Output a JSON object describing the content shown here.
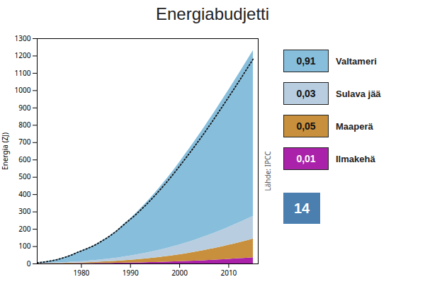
{
  "chart_data": {
    "type": "area",
    "title": "Energiabudjetti",
    "ylabel": "Energia (ZJ)",
    "annotations": [
      "Lähde: IPCC",
      "14"
    ],
    "x": [
      1971,
      1972,
      1973,
      1974,
      1975,
      1976,
      1977,
      1978,
      1979,
      1980,
      1981,
      1982,
      1983,
      1984,
      1985,
      1986,
      1987,
      1988,
      1989,
      1990,
      1991,
      1992,
      1993,
      1994,
      1995,
      1996,
      1997,
      1998,
      1999,
      2000,
      2001,
      2002,
      2003,
      2004,
      2005,
      2006,
      2007,
      2008,
      2009,
      2010,
      2011,
      2012,
      2013,
      2014,
      2015
    ],
    "series": [
      {
        "name": "Ilmakehä",
        "color": "#aa22aa",
        "share": {
          "value": 0.01,
          "label": "0,01"
        },
        "values": [
          0.5,
          0.6,
          0.7,
          0.8,
          0.9,
          1.0,
          1.2,
          1.4,
          1.6,
          1.9,
          2.1,
          2.3,
          2.6,
          2.9,
          3.2,
          3.5,
          3.9,
          4.3,
          4.8,
          5.3,
          5.8,
          6.4,
          7.0,
          7.7,
          8.4,
          9.2,
          10.0,
          10.9,
          11.8,
          12.8,
          13.9,
          15.0,
          16.2,
          17.5,
          18.9,
          20.3,
          21.8,
          23.4,
          25.0,
          26.7,
          28.4,
          30.2,
          32.0,
          33.9,
          35.8
        ]
      },
      {
        "name": "Maaperä",
        "color": "#c8903c",
        "share": {
          "value": 0.05,
          "label": "0,05"
        },
        "values": [
          1.0,
          1.2,
          1.5,
          1.8,
          2.1,
          2.5,
          2.9,
          3.4,
          4.0,
          4.7,
          5.4,
          6.2,
          7.1,
          8.1,
          9.2,
          10.4,
          11.7,
          13.1,
          14.7,
          16.3,
          18.1,
          20.0,
          22.0,
          24.2,
          26.5,
          29.0,
          31.6,
          34.4,
          37.3,
          40.4,
          43.7,
          47.2,
          50.9,
          54.7,
          58.8,
          63.0,
          67.4,
          71.9,
          76.6,
          81.5,
          86.5,
          91.7,
          97.0,
          102.5,
          108.1
        ]
      },
      {
        "name": "Sulava jää",
        "color": "#b8cee0",
        "share": {
          "value": 0.03,
          "label": "0,03"
        },
        "values": [
          1.5,
          1.8,
          2.1,
          2.5,
          3.0,
          3.6,
          4.2,
          5.0,
          5.9,
          7.0,
          8.1,
          9.4,
          10.8,
          12.3,
          13.9,
          15.7,
          17.6,
          19.7,
          21.9,
          24.3,
          26.8,
          29.5,
          32.3,
          35.3,
          38.4,
          41.7,
          45.2,
          48.8,
          52.6,
          56.5,
          60.6,
          64.8,
          69.2,
          73.7,
          78.3,
          83.1,
          88.0,
          93.0,
          98.1,
          103.3,
          108.6,
          114.0,
          119.5,
          125.1,
          130.7
        ]
      },
      {
        "name": "Valtameri",
        "color": "#87bedc",
        "share": {
          "value": 0.91,
          "label": "0,91"
        },
        "values": [
          5,
          7,
          10,
          14,
          19,
          26,
          33,
          42,
          53,
          62,
          71,
          80,
          92,
          106,
          120,
          136,
          154,
          174,
          196,
          216,
          238,
          261,
          285,
          310,
          336,
          363,
          390,
          418,
          447,
          477,
          508,
          538,
          569,
          600,
          631,
          663,
          695,
          727,
          760,
          792,
          825,
          858,
          891,
          924,
          957
        ]
      },
      {
        "type": "line",
        "line_style": "dotted",
        "color": "#111111",
        "values": [
          6,
          9,
          13,
          18,
          24,
          32,
          41,
          51,
          64,
          75,
          86,
          98,
          112,
          129,
          146,
          165,
          186,
          210,
          235,
          258,
          282,
          309,
          336,
          365,
          395,
          427,
          459,
          493,
          528,
          564,
          601,
          638,
          676,
          715,
          754,
          795,
          836,
          878,
          920,
          963,
          1006,
          1050,
          1094,
          1139,
          1183
        ]
      }
    ],
    "stacked": true,
    "xlim": [
      1971,
      2016
    ],
    "xticks": [
      1980,
      1990,
      2000,
      2010
    ],
    "ylim": [
      0,
      1300
    ],
    "yticks": [
      0,
      100,
      200,
      300,
      400,
      500,
      600,
      700,
      800,
      900,
      1000,
      1100,
      1200,
      1300
    ],
    "grid": false,
    "legend": "right"
  }
}
